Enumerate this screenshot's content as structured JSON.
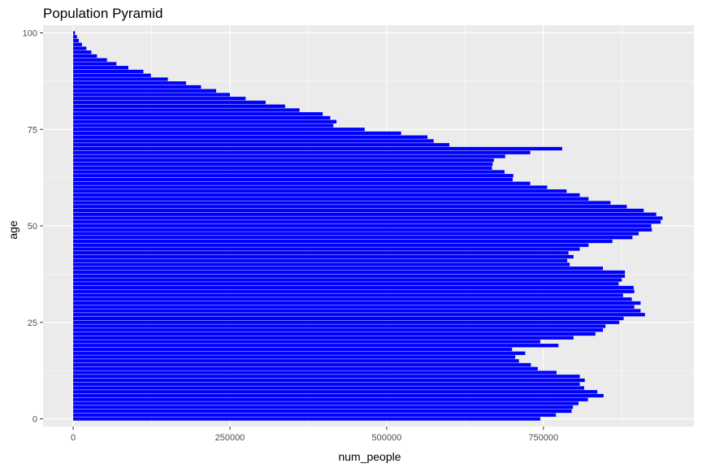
{
  "chart_data": {
    "type": "bar",
    "orientation": "horizontal",
    "title": "Population Pyramid",
    "xlabel": "num_people",
    "ylabel": "age",
    "xlim": [
      -48000,
      990000
    ],
    "ylim": [
      -2,
      102
    ],
    "x_ticks": [
      0,
      250000,
      500000,
      750000
    ],
    "x_tick_labels": [
      "0",
      "250000",
      "500000",
      "750000"
    ],
    "y_ticks": [
      0,
      25,
      50,
      75,
      100
    ],
    "y_tick_labels": [
      "0",
      "25",
      "50",
      "75",
      "100"
    ],
    "grid": true,
    "legend": "none",
    "bar_color": "#0000ff",
    "panel_background": "#ebebeb",
    "grid_color": "#ffffff",
    "series": [
      {
        "ages": [
          0,
          1,
          2,
          3,
          4,
          5,
          6,
          7,
          8,
          9,
          10,
          11,
          12,
          13,
          14,
          15,
          16,
          17,
          18,
          19,
          20,
          21,
          22,
          23,
          24,
          25,
          26,
          27,
          28,
          29,
          30,
          31,
          32,
          33,
          34,
          35,
          36,
          37,
          38,
          39,
          40,
          41,
          42,
          43,
          44,
          45,
          46,
          47,
          48,
          49,
          50,
          51,
          52,
          53,
          54,
          55,
          56,
          57,
          58,
          59,
          60,
          61,
          62,
          63,
          64,
          65,
          66,
          67,
          68,
          69,
          70,
          71,
          72,
          73,
          74,
          75,
          76,
          77,
          78,
          79,
          80,
          81,
          82,
          83,
          84,
          85,
          86,
          87,
          88,
          89,
          90,
          91,
          92,
          93,
          94,
          95,
          96,
          97,
          98,
          99,
          100
        ],
        "values": [
          745000,
          770000,
          795000,
          797000,
          806000,
          821000,
          846000,
          836000,
          815000,
          808000,
          816000,
          808000,
          771000,
          741000,
          730000,
          711000,
          705000,
          721000,
          700000,
          774000,
          745000,
          798000,
          833000,
          845000,
          849000,
          871000,
          878000,
          912000,
          905000,
          895000,
          905000,
          891000,
          877000,
          895000,
          894000,
          870000,
          875000,
          880000,
          880000,
          845000,
          792000,
          788000,
          798000,
          790000,
          808000,
          822000,
          860000,
          892000,
          902000,
          923000,
          922000,
          937000,
          940000,
          930000,
          910000,
          883000,
          857000,
          822000,
          808000,
          787000,
          756000,
          729000,
          701000,
          702000,
          688000,
          668000,
          669000,
          671000,
          689000,
          729000,
          780000,
          600000,
          575000,
          565000,
          523000,
          465000,
          415000,
          420000,
          410000,
          398000,
          361000,
          338000,
          307000,
          275000,
          250000,
          228000,
          204000,
          180000,
          151000,
          124000,
          112000,
          88000,
          69000,
          54000,
          38000,
          29000,
          21000,
          14000,
          9000,
          6000,
          3000
        ]
      }
    ]
  }
}
